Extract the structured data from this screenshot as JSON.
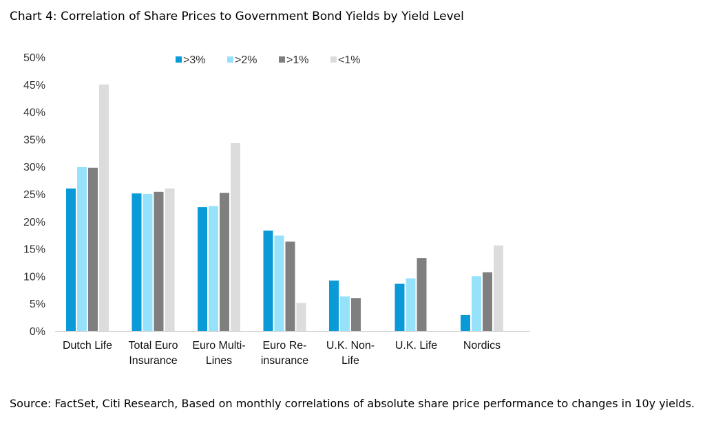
{
  "title": "Chart 4: Correlation of Share Prices to Government Bond Yields by Yield Level",
  "source": "Source: FactSet, Citi Research, Based on monthly correlations of absolute share price performance to changes in 10y yields.",
  "chart_data": {
    "type": "bar",
    "categories": [
      [
        "Dutch Life"
      ],
      [
        "Total Euro",
        "Insurance"
      ],
      [
        "Euro Multi-",
        "Lines"
      ],
      [
        "Euro Re-",
        "insurance"
      ],
      [
        "U.K. Non-",
        "Life"
      ],
      [
        "U.K. Life"
      ],
      [
        "Nordics"
      ]
    ],
    "series": [
      {
        "name": ">3%",
        "color": "#0a9ad8",
        "values": [
          26,
          25.1,
          22.6,
          18.3,
          9.2,
          8.6,
          2.9
        ]
      },
      {
        "name": ">2%",
        "color": "#97e2fb",
        "values": [
          29.9,
          25,
          22.8,
          17.4,
          6.3,
          9.6,
          10
        ]
      },
      {
        "name": ">1%",
        "color": "#7f7f7f",
        "values": [
          29.8,
          25.4,
          25.2,
          16.3,
          6,
          13.3,
          10.7
        ]
      },
      {
        "name": "<1%",
        "color": "#dcdcdc",
        "values": [
          45,
          26,
          34.3,
          5.1,
          null,
          null,
          15.6
        ]
      }
    ],
    "ylim": [
      0,
      50
    ],
    "yticks": [
      "0%",
      "5%",
      "10%",
      "15%",
      "20%",
      "25%",
      "30%",
      "35%",
      "40%",
      "45%",
      "50%"
    ],
    "legend_position": "top-center",
    "grid": false
  }
}
